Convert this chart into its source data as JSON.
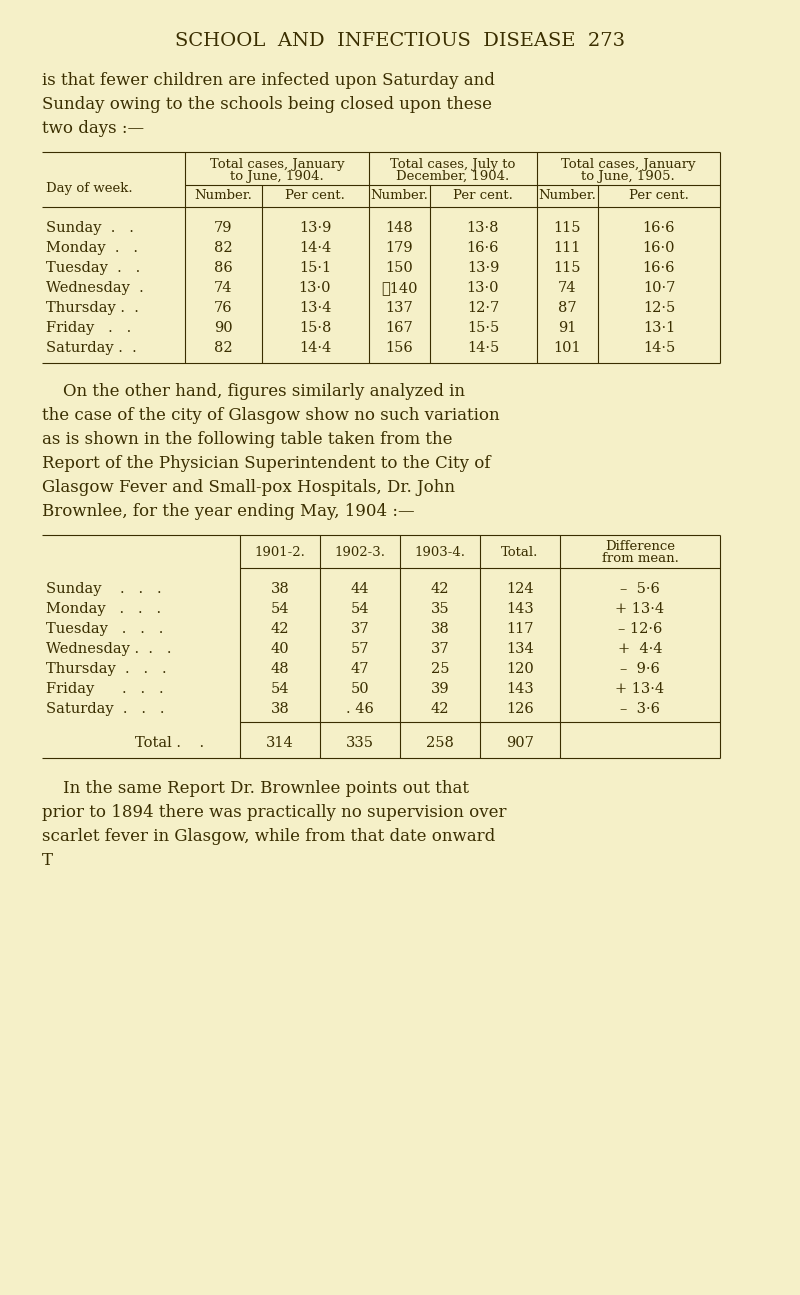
{
  "bg_color": "#f5f0c8",
  "text_color": "#3a2e00",
  "page_title": "SCHOOL  AND  INFECTIOUS  DISEASE  273",
  "intro_text": [
    "is that fewer children are infected upon Saturday and",
    "Sunday owing to the schools being closed upon these",
    "two days :—"
  ],
  "table1": {
    "grp_headers": [
      [
        "Total cases, January",
        "to June, 1904."
      ],
      [
        "Total cases, July to",
        "December, 1904."
      ],
      [
        "Total cases, January",
        "to June, 1905."
      ]
    ],
    "sub_headers": [
      "Number.",
      "Per cent.",
      "Number.",
      "Per cent.",
      "Number.",
      "Per cent."
    ],
    "row_label": "Day of week.",
    "rows": [
      {
        "day": "Sunday  .   .",
        "data": [
          "79",
          "13·9",
          "148",
          "13·8",
          "115",
          "16·6"
        ]
      },
      {
        "day": "Monday  .   .",
        "data": [
          "82",
          "14·4",
          "179",
          "16·6",
          "111",
          "16·0"
        ]
      },
      {
        "day": "Tuesday  .   .",
        "data": [
          "86",
          "15·1",
          "150",
          "13·9",
          "115",
          "16·6"
        ]
      },
      {
        "day": "Wednesday  .",
        "data": [
          "74",
          "13·0",
          "ᅀ140",
          "13·0",
          "74",
          "10·7"
        ]
      },
      {
        "day": "Thursday .  .",
        "data": [
          "76",
          "13·4",
          "137",
          "12·7",
          "87",
          "12·5"
        ]
      },
      {
        "day": "Friday   .   .",
        "data": [
          "90",
          "15·8",
          "167",
          "15·5",
          "91",
          "13·1"
        ]
      },
      {
        "day": "Saturday .  .",
        "data": [
          "82",
          "14·4",
          "156",
          "14·5",
          "101",
          "14·5"
        ]
      }
    ]
  },
  "middle_text": [
    "    On the other hand, figures similarly analyzed in",
    "the case of the city of Glasgow show no such variation",
    "as is shown in the following table taken from the",
    "Report of the Physician Superintendent to the City of",
    "Glasgow Fever and Small-pox Hospitals, Dr. John",
    "Brownlee, for the year ending May, 1904 :—"
  ],
  "table2": {
    "col_headers_line1": [
      "1901-2.",
      "1902-3.",
      "1903-4.",
      "Total.",
      "Difference"
    ],
    "col_headers_line2": [
      "",
      "",
      "",
      "",
      "from mean."
    ],
    "rows": [
      {
        "day": "Sunday    .   .   .",
        "data": [
          "38",
          "44",
          "42",
          "124",
          "–  5·6"
        ]
      },
      {
        "day": "Monday   .   .   .",
        "data": [
          "54",
          "54",
          "35",
          "143",
          "+ 13·4"
        ]
      },
      {
        "day": "Tuesday   .   .   .",
        "data": [
          "42",
          "37",
          "38",
          "117",
          "– 12·6"
        ]
      },
      {
        "day": "Wednesday .  .   .",
        "data": [
          "40",
          "57",
          "37",
          "134",
          "+  4·4"
        ]
      },
      {
        "day": "Thursday  .   .   .",
        "data": [
          "48",
          "47",
          "25",
          "120",
          "–  9·6"
        ]
      },
      {
        "day": "Friday      .   .   .",
        "data": [
          "54",
          "50",
          "39",
          "143",
          "+ 13·4"
        ]
      },
      {
        "day": "Saturday  .   .   .",
        "data": [
          "38",
          ". 46",
          "42",
          "126",
          "–  3·6"
        ]
      }
    ],
    "total_row": {
      "label": "Total .    .",
      "data": [
        "314",
        "335",
        "258",
        "907",
        ""
      ]
    }
  },
  "bottom_text": [
    "    In the same Report Dr. Brownlee points out that",
    "prior to 1894 there was practically no supervision over",
    "scarlet fever in Glasgow, while from that date onward",
    "T"
  ]
}
